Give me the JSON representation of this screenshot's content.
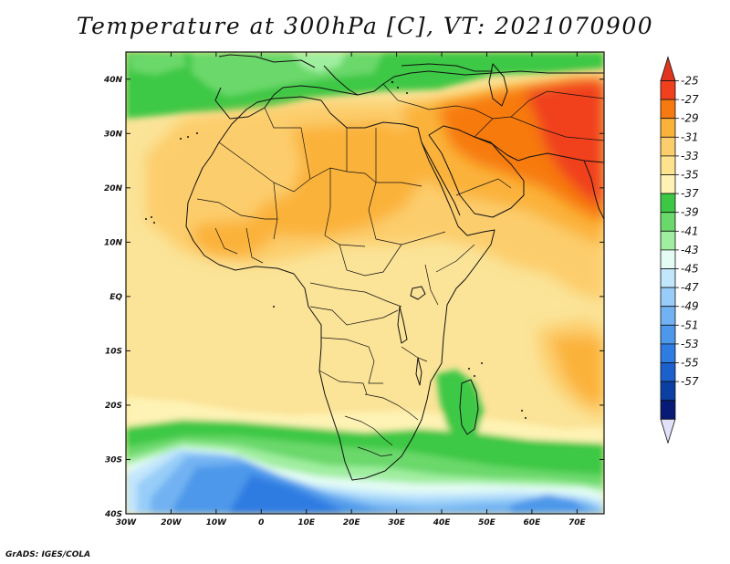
{
  "title": "Temperature at 300hPa [C], VT: 2021070900",
  "credit": "GrADS: IGES/COLA",
  "map": {
    "projection": "lat-lon",
    "lon_range": [
      -30,
      76
    ],
    "lat_range": [
      -40,
      45
    ],
    "lon_ticks": [
      {
        "value": -30,
        "label": "30W"
      },
      {
        "value": -20,
        "label": "20W"
      },
      {
        "value": -10,
        "label": "10W"
      },
      {
        "value": 0,
        "label": "0"
      },
      {
        "value": 10,
        "label": "10E"
      },
      {
        "value": 20,
        "label": "20E"
      },
      {
        "value": 30,
        "label": "30E"
      },
      {
        "value": 40,
        "label": "40E"
      },
      {
        "value": 50,
        "label": "50E"
      },
      {
        "value": 60,
        "label": "60E"
      },
      {
        "value": 70,
        "label": "70E"
      }
    ],
    "lat_ticks": [
      {
        "value": 40,
        "label": "40N"
      },
      {
        "value": 30,
        "label": "30N"
      },
      {
        "value": 20,
        "label": "20N"
      },
      {
        "value": 10,
        "label": "10N"
      },
      {
        "value": 0,
        "label": "EQ"
      },
      {
        "value": -10,
        "label": "10S"
      },
      {
        "value": -20,
        "label": "20S"
      },
      {
        "value": -30,
        "label": "30S"
      },
      {
        "value": -40,
        "label": "40S"
      }
    ],
    "background_color": "#fbe397"
  },
  "colorbar": {
    "levels": [
      "-25",
      "-27",
      "-29",
      "-31",
      "-33",
      "-35",
      "-37",
      "-39",
      "-41",
      "-43",
      "-45",
      "-47",
      "-49",
      "-51",
      "-53",
      "-55",
      "-57"
    ],
    "colors": [
      "#f0401e",
      "#f77a11",
      "#fbb23a",
      "#fccd6c",
      "#fde38e",
      "#fef3b4",
      "#3cc844",
      "#6ad86a",
      "#a0eea0",
      "#e4fcf4",
      "#c2e6fc",
      "#97cdf8",
      "#72b2f2",
      "#4d98ea",
      "#2e7be2",
      "#1b60cc",
      "#0b3fa4",
      "#061a76"
    ],
    "top_arrow_color": "#e03620",
    "bottom_arrow_color": "#e0e0fa"
  },
  "chart_data": {
    "type": "heatmap",
    "title": "Temperature at 300hPa [C], VT: 2021070900",
    "variable": "Temperature at 300hPa",
    "units": "C",
    "valid_time": "2021070900",
    "x_range": [
      -30,
      76
    ],
    "y_range": [
      -40,
      45
    ],
    "regions": [
      {
        "lon": [
          -30,
          76
        ],
        "lat": [
          -23,
          45
        ],
        "value": -33
      },
      {
        "lon": [
          -30,
          10
        ],
        "lat": [
          38,
          45
        ],
        "value": -38
      },
      {
        "lon": [
          -20,
          0
        ],
        "lat": [
          39,
          44
        ],
        "value": -40
      },
      {
        "lon": [
          10,
          30
        ],
        "lat": [
          39,
          45
        ],
        "value": -40
      },
      {
        "lon": [
          -10,
          30
        ],
        "lat": [
          30,
          38
        ],
        "value": -31
      },
      {
        "lon": [
          10,
          35
        ],
        "lat": [
          14,
          30
        ],
        "value": -30
      },
      {
        "lon": [
          -15,
          10
        ],
        "lat": [
          8,
          18
        ],
        "value": -31
      },
      {
        "lon": [
          35,
          76
        ],
        "lat": [
          5,
          32
        ],
        "value": -29
      },
      {
        "lon": [
          45,
          76
        ],
        "lat": [
          18,
          40
        ],
        "value": -27
      },
      {
        "lon": [
          60,
          76
        ],
        "lat": [
          15,
          38
        ],
        "value": -25
      },
      {
        "lon": [
          -30,
          76
        ],
        "lat": [
          -30,
          -23
        ],
        "value": -36
      },
      {
        "lon": [
          -30,
          76
        ],
        "lat": [
          -33,
          -28
        ],
        "value": -39
      },
      {
        "lon": [
          -30,
          76
        ],
        "lat": [
          -36,
          -31
        ],
        "value": -43
      },
      {
        "lon": [
          -20,
          20
        ],
        "lat": [
          -40,
          -30
        ],
        "value": -49
      },
      {
        "lon": [
          15,
          70
        ],
        "lat": [
          -40,
          -35
        ],
        "value": -51
      }
    ],
    "colorbar_levels": [
      -25,
      -27,
      -29,
      -31,
      -33,
      -35,
      -37,
      -39,
      -41,
      -43,
      -45,
      -47,
      -49,
      -51,
      -53,
      -55,
      -57
    ]
  }
}
